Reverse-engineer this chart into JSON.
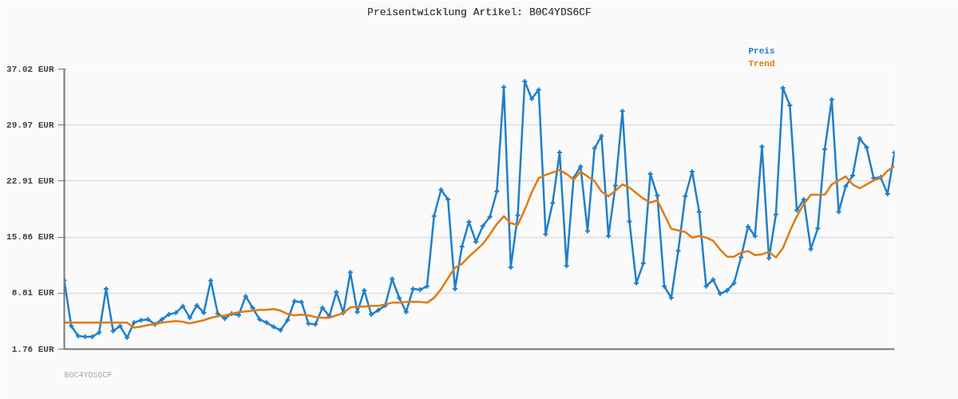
{
  "chart_data": {
    "type": "line",
    "title": "Preisentwicklung Artikel: B0C4YDS6CF",
    "annotations": [
      "B0C4YDS6CF"
    ],
    "ylim": [
      1.76,
      37.02
    ],
    "yticks": [
      {
        "value": 1.76,
        "label": "1.76 EUR"
      },
      {
        "value": 8.81,
        "label": "8.81 EUR"
      },
      {
        "value": 15.86,
        "label": "15.86 EUR"
      },
      {
        "value": 22.91,
        "label": "22.91 EUR"
      },
      {
        "value": 29.97,
        "label": "29.97 EUR"
      },
      {
        "value": 37.02,
        "label": "37.02 EUR"
      }
    ],
    "categories": [
      null,
      null,
      null,
      null,
      null,
      null,
      null,
      null,
      null,
      null,
      null,
      null,
      null,
      null,
      null,
      null,
      null,
      null,
      null,
      null,
      null,
      null,
      null,
      null,
      null,
      null,
      null,
      null,
      null,
      null,
      null,
      null,
      null,
      null,
      null,
      null,
      null,
      null,
      null,
      null,
      null,
      null,
      null,
      null,
      null,
      null,
      null,
      null,
      null,
      null,
      null,
      null,
      null,
      null,
      null,
      null,
      null,
      null,
      null,
      null,
      null,
      null,
      null,
      null,
      null,
      null,
      null,
      null,
      null,
      null,
      null,
      null,
      null,
      null,
      null,
      null,
      null,
      null,
      null,
      null,
      null,
      null,
      null,
      null,
      null,
      null,
      null,
      null,
      null,
      null,
      null,
      null,
      null,
      null,
      null,
      null,
      null,
      null,
      null,
      null,
      null,
      null,
      null,
      null,
      null,
      null,
      null,
      null,
      null,
      null,
      null,
      null,
      null,
      null,
      null,
      null,
      null,
      null,
      null,
      null
    ],
    "grid": "y",
    "tick_labels": "y",
    "series": [
      {
        "name": "Preis",
        "color": "#1f7fcc",
        "marker": "cross",
        "values": [
          10.39,
          4.67,
          3.42,
          3.32,
          3.32,
          3.84,
          9.35,
          4.05,
          4.67,
          3.22,
          5.09,
          5.4,
          5.5,
          4.88,
          5.5,
          6.13,
          6.34,
          7.17,
          5.71,
          7.27,
          6.34,
          10.39,
          6.23,
          5.61,
          6.23,
          6.03,
          8.42,
          6.96,
          5.5,
          5.09,
          4.57,
          4.15,
          5.4,
          7.79,
          7.69,
          4.98,
          4.88,
          6.96,
          5.92,
          8.94,
          6.34,
          11.43,
          6.44,
          9.14,
          6.13,
          6.65,
          7.27,
          10.6,
          8.21,
          6.44,
          9.35,
          9.25,
          9.67,
          18.51,
          21.83,
          20.59,
          9.35,
          14.66,
          17.78,
          15.28,
          17.26,
          18.4,
          21.62,
          34.73,
          12.06,
          18.61,
          35.46,
          33.28,
          34.42,
          16.22,
          20.17,
          26.52,
          12.27,
          23.29,
          24.75,
          16.63,
          27.04,
          28.59,
          15.99,
          22.35,
          31.71,
          17.84,
          10.08,
          12.58,
          23.81,
          21.11,
          9.67,
          8.21,
          14.14,
          21.0,
          24.12,
          19.03,
          9.67,
          10.5,
          8.73,
          9.14,
          10.08,
          13.31,
          17.17,
          15.99,
          27.24,
          13.2,
          18.71,
          34.63,
          32.44,
          19.23,
          20.59,
          14.35,
          16.95,
          26.93,
          33.17,
          19.03,
          22.25,
          23.6,
          28.28,
          27.14,
          23.29,
          23.39,
          21.31,
          26.52
        ]
      },
      {
        "name": "Trend",
        "color": "#e07b10",
        "marker": "none",
        "values": [
          5.09,
          5.09,
          5.09,
          5.09,
          5.09,
          5.09,
          5.09,
          5.09,
          5.09,
          5.09,
          4.46,
          4.6,
          4.8,
          4.9,
          5.1,
          5.2,
          5.3,
          5.2,
          5.0,
          5.2,
          5.4,
          5.7,
          5.9,
          6.0,
          6.2,
          6.4,
          6.5,
          6.6,
          6.7,
          6.7,
          6.8,
          6.6,
          6.2,
          6.0,
          6.1,
          6.0,
          5.8,
          5.7,
          5.7,
          6.0,
          6.3,
          7.0,
          7.1,
          7.1,
          7.2,
          7.2,
          7.4,
          7.6,
          7.6,
          7.7,
          7.7,
          7.7,
          7.6,
          8.2,
          9.3,
          10.7,
          12.0,
          12.5,
          13.4,
          14.2,
          15.0,
          16.2,
          17.5,
          18.5,
          17.6,
          17.4,
          19.3,
          21.5,
          23.3,
          23.7,
          24.0,
          24.3,
          23.8,
          23.1,
          24.1,
          23.5,
          22.9,
          21.6,
          21.0,
          21.7,
          22.5,
          22.1,
          21.4,
          20.7,
          20.2,
          20.5,
          18.7,
          16.9,
          16.7,
          16.5,
          15.8,
          16.0,
          15.8,
          15.4,
          14.3,
          13.4,
          13.4,
          13.9,
          14.1,
          13.6,
          13.7,
          14.0,
          13.3,
          14.5,
          16.6,
          18.5,
          20.0,
          21.2,
          21.2,
          21.2,
          22.5,
          23.0,
          23.5,
          22.5,
          22.0,
          22.5,
          23.0,
          23.3,
          24.2,
          24.8
        ]
      }
    ]
  }
}
